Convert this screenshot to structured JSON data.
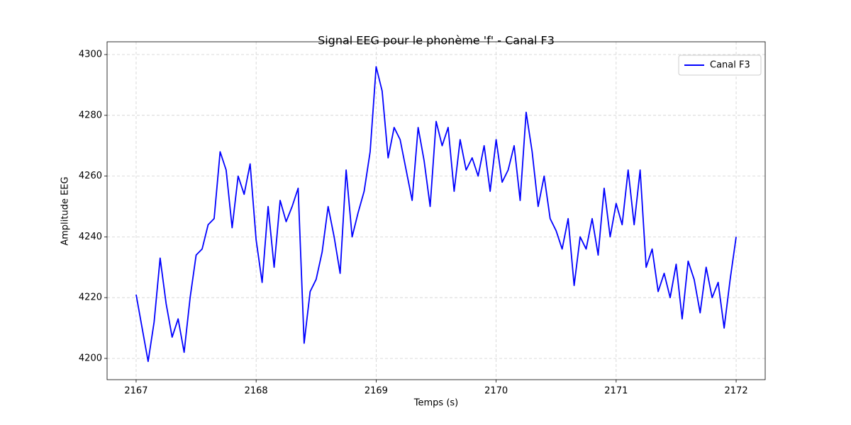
{
  "chart_data": {
    "type": "line",
    "title": "Signal EEG pour le phonème 'f' - Canal F3",
    "x_label": "Temps (s)",
    "y_label": "Amplitude EEG",
    "x": [
      2167,
      2167.05,
      2167.1,
      2167.15,
      2167.2,
      2167.25,
      2167.3,
      2167.35,
      2167.4,
      2167.45,
      2167.5,
      2167.55,
      2167.6,
      2167.65,
      2167.7,
      2167.75,
      2167.8,
      2167.85,
      2167.9,
      2167.95,
      2168,
      2168.05,
      2168.1,
      2168.15,
      2168.2,
      2168.25,
      2168.3,
      2168.35,
      2168.4,
      2168.45,
      2168.5,
      2168.55,
      2168.6,
      2168.65,
      2168.7,
      2168.75,
      2168.8,
      2168.85,
      2168.9,
      2168.95,
      2169,
      2169.05,
      2169.1,
      2169.15,
      2169.2,
      2169.25,
      2169.3,
      2169.35,
      2169.4,
      2169.45,
      2169.5,
      2169.55,
      2169.6,
      2169.65,
      2169.7,
      2169.75,
      2169.8,
      2169.85,
      2169.9,
      2169.95,
      2170,
      2170.05,
      2170.1,
      2170.15,
      2170.2,
      2170.25,
      2170.3,
      2170.35,
      2170.4,
      2170.45,
      2170.5,
      2170.55,
      2170.6,
      2170.65,
      2170.7,
      2170.75,
      2170.8,
      2170.85,
      2170.9,
      2170.95,
      2171,
      2171.05,
      2171.1,
      2171.15,
      2171.2,
      2171.25,
      2171.3,
      2171.35,
      2171.4,
      2171.45,
      2171.5,
      2171.55,
      2171.6,
      2171.65,
      2171.7,
      2171.75,
      2171.8,
      2171.85,
      2171.9,
      2171.95,
      2172
    ],
    "series": [
      {
        "name": "Canal F3",
        "color": "#0000ff",
        "values": [
          4221,
          4210,
          4199,
          4212,
          4233,
          4218,
          4207,
          4213,
          4202,
          4220,
          4234,
          4236,
          4244,
          4246,
          4268,
          4262,
          4243,
          4260,
          4254,
          4264,
          4239,
          4225,
          4250,
          4230,
          4252,
          4245,
          4250,
          4256,
          4205,
          4222,
          4226,
          4235,
          4250,
          4240,
          4228,
          4262,
          4240,
          4248,
          4255,
          4268,
          4296,
          4288,
          4266,
          4276,
          4272,
          4262,
          4252,
          4276,
          4265,
          4250,
          4278,
          4270,
          4276,
          4255,
          4272,
          4262,
          4266,
          4260,
          4270,
          4255,
          4272,
          4258,
          4262,
          4270,
          4252,
          4281,
          4268,
          4250,
          4260,
          4246,
          4242,
          4236,
          4246,
          4224,
          4240,
          4236,
          4246,
          4234,
          4256,
          4240,
          4251,
          4244,
          4262,
          4244,
          4262,
          4230,
          4236,
          4222,
          4228,
          4220,
          4231,
          4213,
          4232,
          4226,
          4215,
          4230,
          4220,
          4225,
          4210,
          4226,
          4240
        ]
      }
    ],
    "xlim": [
      2166.758,
      2172.242
    ],
    "ylim": [
      4193,
      4304.2
    ],
    "xticks": [
      2167,
      2168,
      2169,
      2170,
      2171,
      2172
    ],
    "yticks": [
      4200,
      4220,
      4240,
      4260,
      4280,
      4300
    ],
    "grid": true,
    "legend": "upper right"
  }
}
